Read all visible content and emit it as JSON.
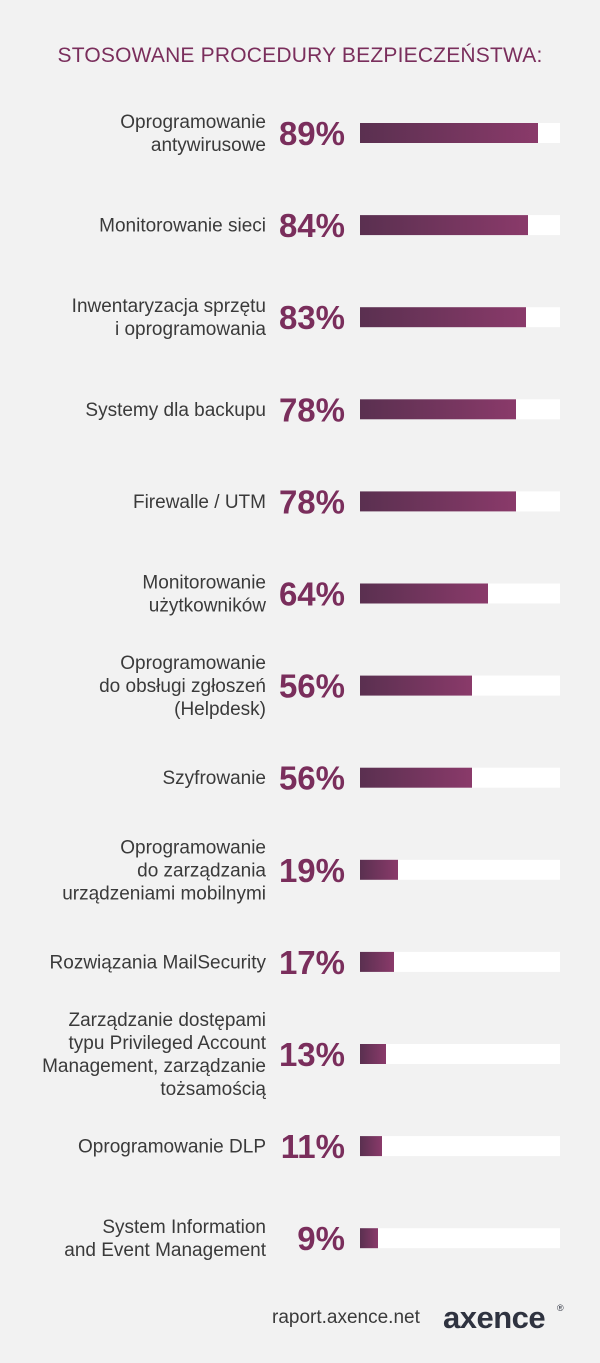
{
  "chart_data": {
    "type": "bar",
    "title": "STOSOWANE PROCEDURY BEZPIECZEŃSTWA:",
    "categories": [
      [
        "Oprogramowanie",
        "antywirusowe"
      ],
      [
        "Monitorowanie sieci"
      ],
      [
        "Inwentaryzacja sprzętu",
        "i oprogramowania"
      ],
      [
        "Systemy dla backupu"
      ],
      [
        "Firewalle / UTM"
      ],
      [
        "Monitorowanie",
        "użytkowników"
      ],
      [
        "Oprogramowanie",
        "do obsługi zgłoszeń",
        "(Helpdesk)"
      ],
      [
        "Szyfrowanie"
      ],
      [
        "Oprogramowanie",
        "do zarządzania",
        "urządzeniami mobilnymi"
      ],
      [
        "Rozwiązania MailSecurity"
      ],
      [
        "Zarządzanie dostępami",
        "typu Privileged Account",
        "Management, zarządzanie",
        "tożsamością"
      ],
      [
        "Oprogramowanie DLP"
      ],
      [
        "System Information",
        "and Event Management"
      ]
    ],
    "values": [
      89,
      84,
      83,
      78,
      78,
      64,
      56,
      56,
      19,
      17,
      13,
      11,
      9
    ],
    "value_labels": [
      "89%",
      "84%",
      "83%",
      "78%",
      "78%",
      "64%",
      "56%",
      "56%",
      "19%",
      "17%",
      "13%",
      "11%",
      "9%"
    ],
    "xlim": [
      0,
      100
    ],
    "grid": false,
    "colors": {
      "bar_start": "#5a3050",
      "bar_end": "#8a3a6a",
      "track": "#ffffff",
      "value_text": "#7a2e5c",
      "label_text": "#3a3a3a"
    }
  },
  "footer": {
    "source": "raport.axence.net",
    "logo_text": "axence",
    "logo_mark": "®"
  }
}
